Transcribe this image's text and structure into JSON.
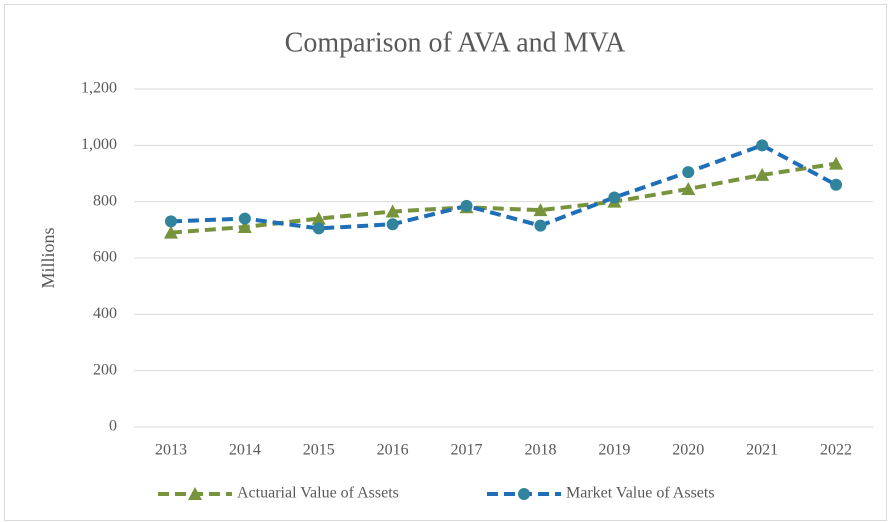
{
  "chart_data": {
    "type": "line",
    "title": "Comparison of AVA and MVA",
    "y_label": "Millions",
    "categories": [
      "2013",
      "2014",
      "2015",
      "2016",
      "2017",
      "2018",
      "2019",
      "2020",
      "2021",
      "2022"
    ],
    "series": [
      {
        "name": "Actuarial Value of Assets",
        "color": "#77933c",
        "marker": "triangle",
        "marker_color": "#77933c",
        "values": [
          690,
          710,
          740,
          765,
          780,
          770,
          800,
          845,
          895,
          935
        ]
      },
      {
        "name": "Market Value of Assets",
        "color": "#1f6fb8",
        "marker": "circle",
        "marker_color": "#31849b",
        "values": [
          730,
          740,
          705,
          720,
          785,
          715,
          815,
          905,
          1000,
          860
        ]
      }
    ],
    "ylim": [
      0,
      1200
    ],
    "yticks": [
      0,
      200,
      400,
      600,
      800,
      {
        "value": 1000,
        "label": "1,000"
      },
      {
        "value": 1200,
        "label": "1,200"
      }
    ],
    "grid": true,
    "legend": "bottom"
  }
}
